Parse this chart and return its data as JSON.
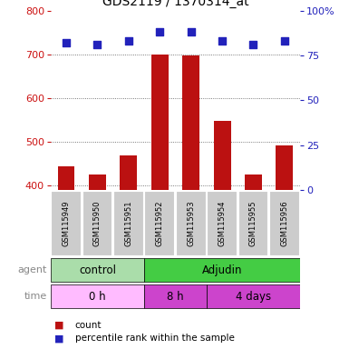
{
  "title": "GDS2119 / 1370314_at",
  "samples": [
    "GSM115949",
    "GSM115950",
    "GSM115951",
    "GSM115952",
    "GSM115953",
    "GSM115954",
    "GSM115955",
    "GSM115956"
  ],
  "counts": [
    445,
    425,
    470,
    700,
    698,
    548,
    425,
    493
  ],
  "percentile_ranks": [
    82,
    81,
    83,
    88,
    88,
    83,
    81,
    83
  ],
  "ylim_left": [
    390,
    800
  ],
  "ylim_right": [
    0,
    100
  ],
  "yticks_left": [
    400,
    500,
    600,
    700,
    800
  ],
  "ytick_right_labels": [
    "0",
    "25",
    "50",
    "75",
    "100%"
  ],
  "yticks_right": [
    0,
    25,
    50,
    75,
    100
  ],
  "bar_color": "#bb1111",
  "dot_color": "#2222bb",
  "bar_baseline": 390,
  "agent_groups": [
    {
      "label": "control",
      "start": 0,
      "end": 3,
      "color": "#aaddaa"
    },
    {
      "label": "Adjudin",
      "start": 3,
      "end": 8,
      "color": "#44cc44"
    }
  ],
  "time_groups": [
    {
      "label": "0 h",
      "start": 0,
      "end": 3,
      "color": "#ffbbff"
    },
    {
      "label": "8 h",
      "start": 3,
      "end": 5,
      "color": "#cc44cc"
    },
    {
      "label": "4 days",
      "start": 5,
      "end": 8,
      "color": "#cc44cc"
    }
  ],
  "grid_color": "#555555",
  "bg_color": "#ffffff",
  "sample_box_color": "#cccccc",
  "left_axis_color": "#cc1111",
  "right_axis_color": "#2222bb",
  "label_color": "#888888",
  "arrow_color": "#aaaaaa"
}
